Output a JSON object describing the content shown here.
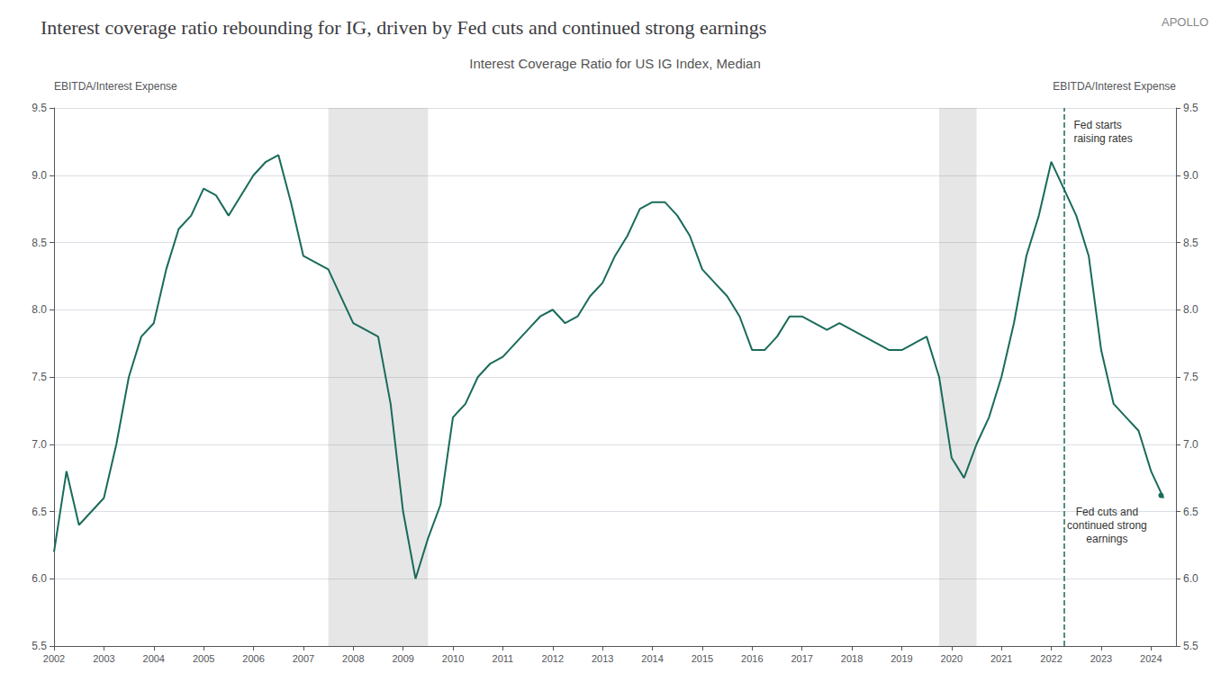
{
  "chart_data": {
    "type": "line",
    "title": "Interest coverage ratio rebounding for IG, driven by Fed cuts and continued strong earnings",
    "subtitle": "Interest Coverage Ratio for US IG Index, Median",
    "watermark": "APOLLO",
    "ylabel": "EBITDA/Interest Expense",
    "y2label": "EBITDA/Interest Expense",
    "color": "#1a6b5a",
    "grid": true,
    "xlim": [
      2002,
      2024.5
    ],
    "xticks": [
      2002,
      2003,
      2004,
      2005,
      2006,
      2007,
      2008,
      2009,
      2010,
      2011,
      2012,
      2013,
      2014,
      2015,
      2016,
      2017,
      2018,
      2019,
      2020,
      2021,
      2022,
      2023,
      2024
    ],
    "ylim": [
      5.5,
      9.5
    ],
    "yticks": [
      5.5,
      {
        "value": 6.0,
        "label": "6.0"
      },
      6.5,
      {
        "value": 7.0,
        "label": "7.0"
      },
      7.5,
      {
        "value": 8.0,
        "label": "8.0"
      },
      8.5,
      {
        "value": 9.0,
        "label": "9.0"
      },
      9.5
    ],
    "y2lim": [
      5.5,
      9.5
    ],
    "y2ticks": [
      5.5,
      {
        "value": 6.0,
        "label": "6.0"
      },
      6.5,
      {
        "value": 7.0,
        "label": "7.0"
      },
      7.5,
      {
        "value": 8.0,
        "label": "8.0"
      },
      8.5,
      {
        "value": 9.0,
        "label": "9.0"
      },
      9.5
    ],
    "recessions": [
      [
        2007.5,
        2009.5
      ],
      [
        2019.75,
        2020.5
      ]
    ],
    "fed_hike_x": 2022.25,
    "annotations": [
      {
        "text": "Fed starts\nraising rates"
      },
      {
        "text": "Fed cuts and\ncontinued strong\nearnings",
        "x": 2024.2,
        "y": 6.62
      }
    ],
    "x": [
      2002.0,
      2002.25,
      2002.5,
      2002.75,
      2003.0,
      2003.25,
      2003.5,
      2003.75,
      2004.0,
      2004.25,
      2004.5,
      2004.75,
      2005.0,
      2005.25,
      2005.5,
      2005.75,
      2006.0,
      2006.25,
      2006.5,
      2006.75,
      2007.0,
      2007.25,
      2007.5,
      2007.75,
      2008.0,
      2008.25,
      2008.5,
      2008.75,
      2009.0,
      2009.25,
      2009.5,
      2009.75,
      2010.0,
      2010.25,
      2010.5,
      2010.75,
      2011.0,
      2011.25,
      2011.5,
      2011.75,
      2012.0,
      2012.25,
      2012.5,
      2012.75,
      2013.0,
      2013.25,
      2013.5,
      2013.75,
      2014.0,
      2014.25,
      2014.5,
      2014.75,
      2015.0,
      2015.25,
      2015.5,
      2015.75,
      2016.0,
      2016.25,
      2016.5,
      2016.75,
      2017.0,
      2017.25,
      2017.5,
      2017.75,
      2018.0,
      2018.25,
      2018.5,
      2018.75,
      2019.0,
      2019.25,
      2019.5,
      2019.75,
      2020.0,
      2020.25,
      2020.5,
      2020.75,
      2021.0,
      2021.25,
      2021.5,
      2021.75,
      2022.0,
      2022.25,
      2022.5,
      2022.75,
      2023.0,
      2023.25,
      2023.5,
      2023.75,
      2024.0,
      2024.25
    ],
    "values": [
      6.2,
      6.8,
      6.4,
      6.5,
      6.6,
      7.0,
      7.5,
      7.8,
      7.9,
      8.3,
      8.6,
      8.7,
      8.9,
      8.85,
      8.7,
      8.85,
      9.0,
      9.1,
      9.15,
      8.8,
      8.4,
      8.35,
      8.3,
      8.1,
      7.9,
      7.85,
      7.8,
      7.3,
      6.5,
      6.0,
      6.3,
      6.55,
      7.2,
      7.3,
      7.5,
      7.6,
      7.65,
      7.75,
      7.85,
      7.95,
      8.0,
      7.9,
      7.95,
      8.1,
      8.2,
      8.4,
      8.55,
      8.75,
      8.8,
      8.8,
      8.7,
      8.55,
      8.3,
      8.2,
      8.1,
      7.95,
      7.7,
      7.7,
      7.8,
      7.95,
      7.95,
      7.9,
      7.85,
      7.9,
      7.85,
      7.8,
      7.75,
      7.7,
      7.7,
      7.75,
      7.8,
      7.5,
      6.9,
      6.75,
      7.0,
      7.2,
      7.5,
      7.9,
      8.4,
      8.7,
      9.1,
      8.9,
      8.7,
      8.4,
      7.7,
      7.3,
      7.2,
      7.1,
      6.8,
      6.6
    ]
  }
}
